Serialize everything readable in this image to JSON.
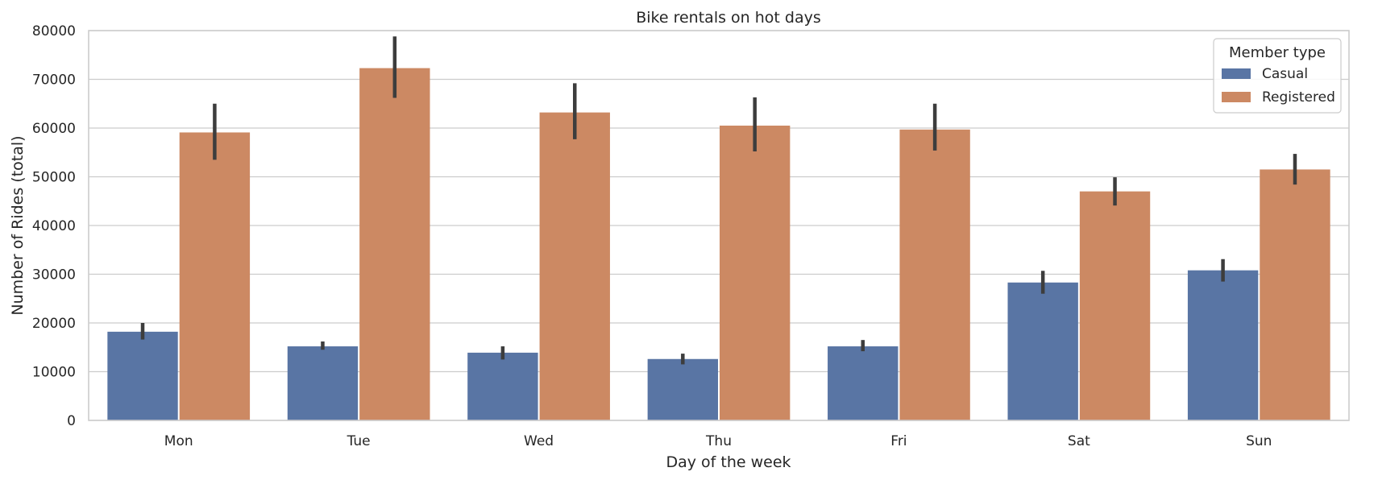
{
  "chart_data": {
    "type": "bar",
    "title": "Bike rentals on hot days",
    "xlabel": "Day of the week",
    "ylabel": "Number of Rides (total)",
    "categories": [
      "Mon",
      "Tue",
      "Wed",
      "Thu",
      "Fri",
      "Sat",
      "Sun"
    ],
    "ylim": [
      0,
      80000
    ],
    "yticks": [
      0,
      10000,
      20000,
      30000,
      40000,
      50000,
      60000,
      70000,
      80000
    ],
    "grid": true,
    "legend": {
      "title": "Member type",
      "placement": "top-right"
    },
    "series": [
      {
        "name": "Casual",
        "color": "#5975a4",
        "values": [
          18200,
          15200,
          13900,
          12600,
          15200,
          28300,
          30800
        ],
        "error_low": [
          16600,
          14500,
          12500,
          11500,
          14200,
          26000,
          28500
        ],
        "error_high": [
          20000,
          16200,
          15200,
          13700,
          16500,
          30700,
          33100
        ]
      },
      {
        "name": "Registered",
        "color": "#cc8963",
        "values": [
          59100,
          72300,
          63200,
          60500,
          59700,
          47000,
          51500
        ],
        "error_low": [
          53500,
          66200,
          57700,
          55200,
          55400,
          44100,
          48400
        ],
        "error_high": [
          65000,
          78800,
          69200,
          66300,
          65000,
          49900,
          54700
        ]
      }
    ]
  }
}
